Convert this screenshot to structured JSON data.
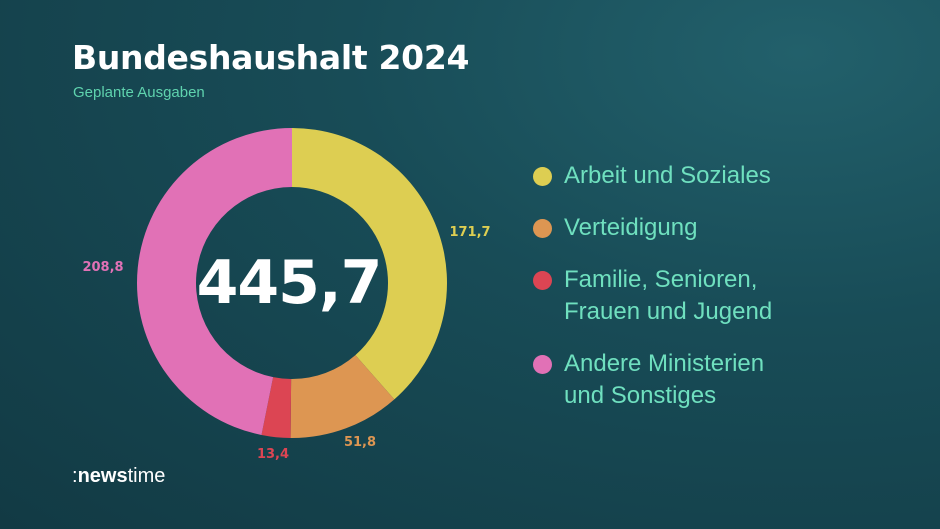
{
  "title": "Bundeshaushalt 2024",
  "subtitle": "Geplante Ausgaben",
  "chart_data": {
    "type": "pie",
    "variant": "donut",
    "total": 445.7,
    "total_label": "445,7",
    "legend_position": "right",
    "series": [
      {
        "name": "Arbeit und Soziales",
        "value": 171.7,
        "label": "171,7",
        "color": "#ddce52"
      },
      {
        "name": "Verteidigung",
        "value": 51.8,
        "label": "51,8",
        "color": "#dd9652"
      },
      {
        "name": "Familie, Senioren, Frauen und Jugend",
        "value": 13.4,
        "label": "13,4",
        "color": "#dc4553"
      },
      {
        "name": "Andere Ministerien und Sonstiges",
        "value": 208.8,
        "label": "208,8",
        "color": "#e171b6"
      }
    ],
    "legend_lines": [
      [
        "Arbeit und Soziales"
      ],
      [
        "Verteidigung"
      ],
      [
        "Familie, Senioren,",
        "Frauen und Jugend"
      ],
      [
        "Andere Ministerien",
        "und Sonstiges"
      ]
    ]
  },
  "logo": {
    "prefix": ":",
    "bold": "news",
    "light": "time"
  }
}
